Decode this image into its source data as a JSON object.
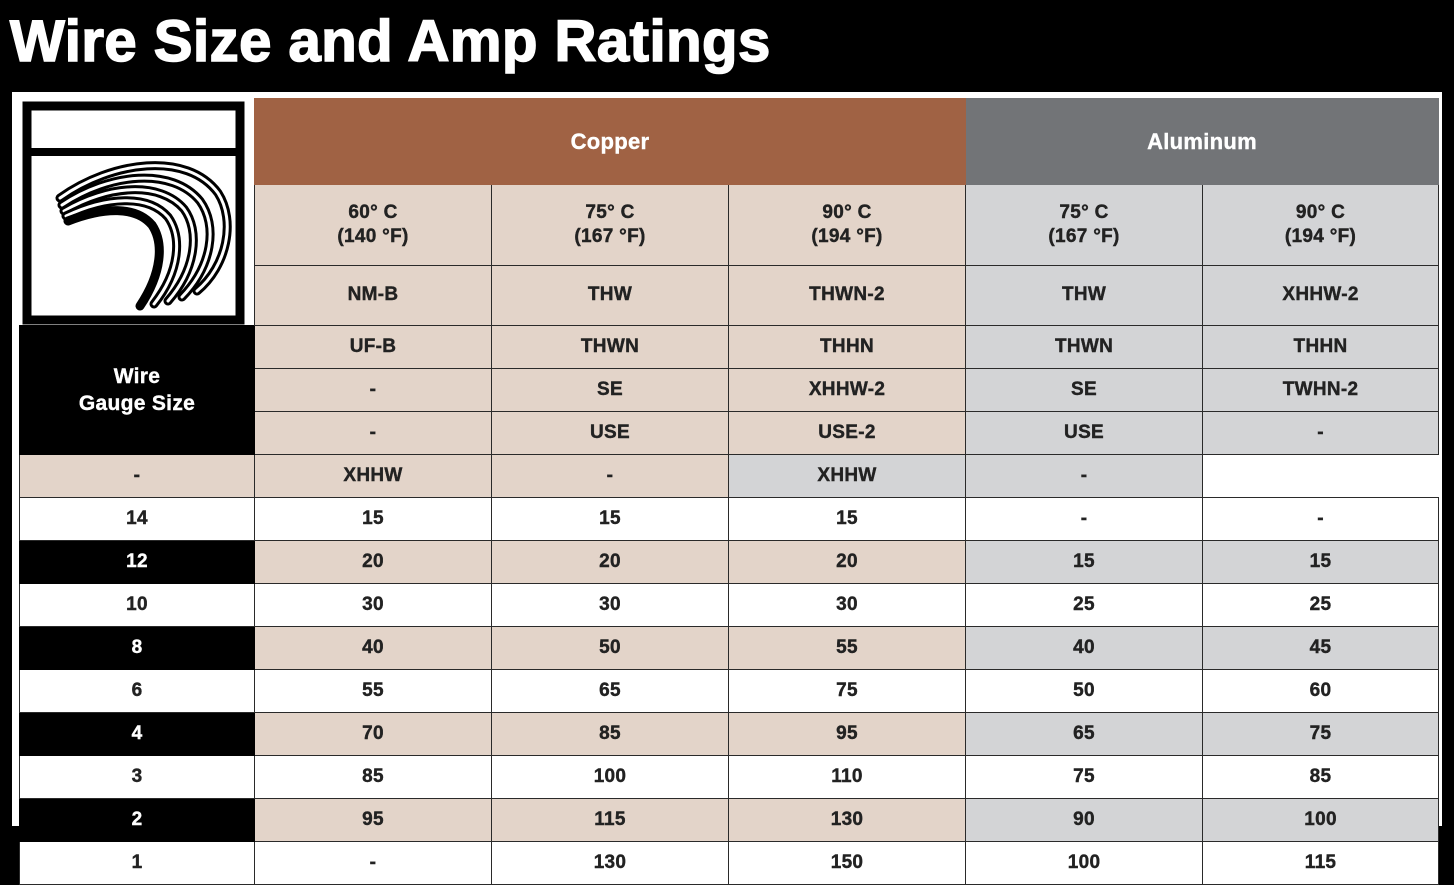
{
  "title": "Wire Size and Amp Ratings",
  "logo": {
    "icon": "wire-strands-icon"
  },
  "gauge_header": "Wire\nGauge Size",
  "groups": [
    {
      "label": "Copper",
      "span": 3,
      "color": "#a06244"
    },
    {
      "label": "Aluminum",
      "span": 2,
      "color": "#727477"
    }
  ],
  "columns": [
    {
      "group": "copper",
      "temp_c": "60° C",
      "temp_f": "(140 °F)",
      "insulation": [
        "NM-B",
        "UF-B",
        "-",
        "-",
        "-"
      ]
    },
    {
      "group": "copper",
      "temp_c": "75° C",
      "temp_f": "(167 °F)",
      "insulation": [
        "THW",
        "THWN",
        "SE",
        "USE",
        "XHHW"
      ]
    },
    {
      "group": "copper",
      "temp_c": "90° C",
      "temp_f": "(194 °F)",
      "insulation": [
        "THWN-2",
        "THHN",
        "XHHW-2",
        "USE-2",
        "-"
      ]
    },
    {
      "group": "aluminum",
      "temp_c": "75° C",
      "temp_f": "(167 °F)",
      "insulation": [
        "THW",
        "THWN",
        "SE",
        "USE",
        "XHHW"
      ]
    },
    {
      "group": "aluminum",
      "temp_c": "90° C",
      "temp_f": "(194 °F)",
      "insulation": [
        "XHHW-2",
        "THHN",
        "TWHN-2",
        "-",
        "-"
      ]
    }
  ],
  "rows": [
    {
      "gauge": "14",
      "values": [
        "15",
        "15",
        "15",
        "-",
        "-"
      ]
    },
    {
      "gauge": "12",
      "values": [
        "20",
        "20",
        "20",
        "15",
        "15"
      ]
    },
    {
      "gauge": "10",
      "values": [
        "30",
        "30",
        "30",
        "25",
        "25"
      ]
    },
    {
      "gauge": "8",
      "values": [
        "40",
        "50",
        "55",
        "40",
        "45"
      ]
    },
    {
      "gauge": "6",
      "values": [
        "55",
        "65",
        "75",
        "50",
        "60"
      ]
    },
    {
      "gauge": "4",
      "values": [
        "70",
        "85",
        "95",
        "65",
        "75"
      ]
    },
    {
      "gauge": "3",
      "values": [
        "85",
        "100",
        "110",
        "75",
        "85"
      ]
    },
    {
      "gauge": "2",
      "values": [
        "95",
        "115",
        "130",
        "90",
        "100"
      ]
    },
    {
      "gauge": "1",
      "values": [
        "-",
        "130",
        "150",
        "100",
        "115"
      ]
    }
  ],
  "colors": {
    "copper_header": "#a06244",
    "aluminum_header": "#727477",
    "copper_tint": "#e3d4c9",
    "aluminum_tint": "#d3d4d6"
  }
}
